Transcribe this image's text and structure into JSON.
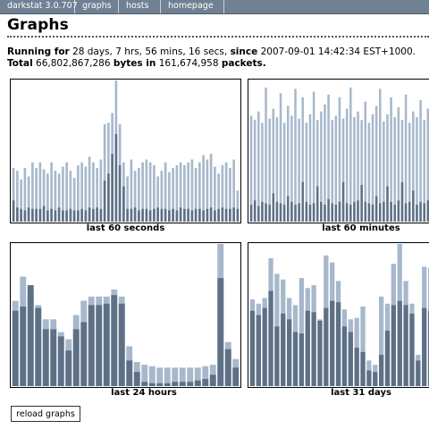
{
  "nav": {
    "app": "darkstat 3.0.707",
    "graphs": "graphs",
    "hosts": "hosts",
    "homepage": "homepage"
  },
  "page_title": "Graphs",
  "stats": {
    "running_label": "Running for",
    "running_value": "28 days, 7 hrs, 56 mins, 16 secs,",
    "since_label": "since",
    "since_value": "2007-09-01 14:42:34 EST+1000.",
    "total_label": "Total",
    "bytes_value": "66,802,867,286",
    "bytes_label": "bytes in",
    "packets_value": "161,674,958",
    "packets_label": "packets."
  },
  "colors": {
    "in": "#5e7085",
    "out": "#a7b8cc",
    "nav_bg": "#6f8193"
  },
  "chart_data": [
    {
      "type": "bar",
      "title": "last 60 seconds",
      "ylim": [
        0,
        100
      ],
      "series": [
        {
          "values": [
            15,
            10,
            9,
            8,
            10,
            9,
            9,
            9,
            11,
            8,
            9,
            8,
            10,
            8,
            8,
            9,
            8,
            8,
            9,
            8,
            10,
            9,
            10,
            9,
            8,
            8,
            9,
            8,
            9,
            10,
            9,
            9,
            10,
            8,
            9,
            9,
            8,
            9,
            10,
            9,
            9,
            8,
            9,
            8,
            10,
            9,
            9,
            8,
            9,
            9,
            8,
            9,
            10,
            8,
            9,
            10,
            9,
            9,
            10,
            9
          ]
        },
        {
          "values": [
            38,
            36,
            30,
            38,
            32,
            42,
            38,
            42,
            37,
            34,
            42,
            36,
            34,
            39,
            42,
            36,
            31,
            40,
            42,
            39,
            46,
            42,
            38,
            44,
            69,
            70,
            77,
            100,
            69,
            42,
            32,
            44,
            36,
            38,
            42,
            44,
            42,
            40,
            32,
            36,
            42,
            35,
            38,
            40,
            42,
            40,
            42,
            44,
            38,
            42,
            47,
            44,
            48,
            39,
            34,
            40,
            42,
            38,
            44,
            22
          ]
        }
      ],
      "overlay_in": [
        0,
        0,
        0,
        0,
        0,
        0,
        0,
        0,
        0,
        0,
        0,
        0,
        0,
        0,
        0,
        0,
        0,
        0,
        0,
        0,
        0,
        0,
        0,
        0,
        29,
        34,
        48,
        62,
        40,
        25,
        0,
        0,
        0,
        0,
        0,
        0,
        0,
        0,
        0,
        0,
        0,
        0,
        0,
        0,
        0,
        0,
        0,
        0,
        0,
        0,
        0,
        0,
        0,
        0,
        0,
        0,
        0,
        0,
        0,
        0
      ]
    },
    {
      "type": "bar",
      "title": "last 60 minutes",
      "ylim": [
        0,
        100
      ],
      "series": [
        {
          "values": [
            12,
            15,
            11,
            14,
            13,
            12,
            20,
            14,
            13,
            12,
            18,
            14,
            12,
            13,
            28,
            14,
            12,
            13,
            25,
            14,
            12,
            16,
            13,
            12,
            14,
            28,
            13,
            12,
            14,
            15,
            26,
            14,
            13,
            12,
            18,
            13,
            14,
            25,
            14,
            12,
            15,
            28,
            13,
            14,
            22,
            12,
            14,
            13,
            15,
            12
          ]
        },
        {
          "values": [
            75,
            72,
            78,
            70,
            95,
            73,
            80,
            74,
            91,
            70,
            82,
            75,
            94,
            73,
            88,
            70,
            76,
            92,
            72,
            78,
            83,
            90,
            72,
            75,
            88,
            73,
            80,
            95,
            74,
            78,
            72,
            85,
            70,
            76,
            82,
            94,
            71,
            76,
            88,
            74,
            81,
            72,
            90,
            70,
            78,
            74,
            86,
            72,
            80,
            75
          ]
        }
      ]
    },
    {
      "type": "bar",
      "title": "last 24 hours",
      "ylim": [
        0,
        100
      ],
      "series": [
        {
          "values": [
            53,
            56,
            71,
            55,
            40,
            40,
            35,
            25,
            40,
            45,
            57,
            57,
            58,
            64,
            58,
            18,
            10,
            3,
            2,
            2,
            2,
            3,
            3,
            3,
            4,
            5,
            8,
            76,
            26,
            13
          ]
        },
        {
          "values": [
            60,
            77,
            64,
            57,
            47,
            47,
            38,
            33,
            50,
            60,
            63,
            63,
            63,
            68,
            63,
            28,
            17,
            15,
            14,
            13,
            13,
            13,
            13,
            13,
            13,
            14,
            15,
            100,
            31,
            19
          ]
        }
      ]
    },
    {
      "type": "bar",
      "title": "last 31 days",
      "ylim": [
        0,
        100
      ],
      "series": [
        {
          "values": [
            53,
            50,
            55,
            67,
            42,
            51,
            47,
            38,
            37,
            53,
            52,
            46,
            55,
            60,
            59,
            42,
            38,
            27,
            24,
            11,
            10,
            22,
            39,
            57,
            60,
            57,
            51,
            18,
            55,
            53
          ]
        },
        {
          "values": [
            61,
            58,
            62,
            90,
            79,
            75,
            62,
            57,
            76,
            69,
            71,
            47,
            92,
            87,
            74,
            54,
            47,
            48,
            56,
            18,
            15,
            63,
            58,
            86,
            100,
            74,
            58,
            22,
            84,
            83
          ]
        }
      ]
    }
  ],
  "graph_labels": {
    "g60s": "last 60 seconds",
    "g60m": "last 60 minutes",
    "g24h": "last 24 hours",
    "g31d": "last 31 days"
  },
  "reload_label": "reload graphs"
}
